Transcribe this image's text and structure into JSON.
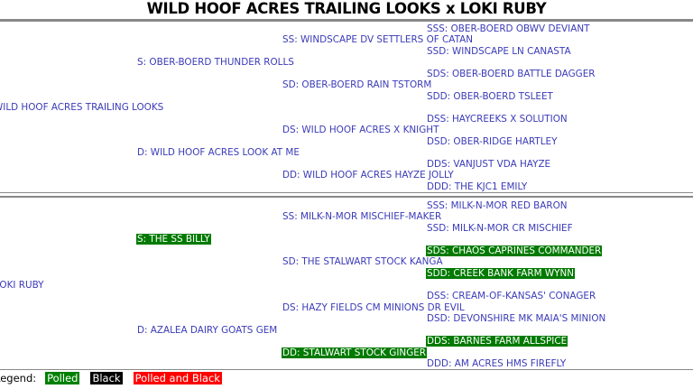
{
  "title": "WILD HOOF ACRES TRAILING LOOKS x LOKI RUBY",
  "colors": {
    "text": "#3a3ab8",
    "polled": "#008000",
    "black": "#000000",
    "polled_and_black": "#ff0000"
  },
  "sire_pedigree": {
    "sss": "SSS: OBER-BOERD OBWV DEVIANT",
    "ss": "SS: WINDSCAPE DV SETTLERS OF CATAN",
    "ssd": "SSD: WINDSCAPE LN CANASTA",
    "s": "S: OBER-BOERD THUNDER ROLLS",
    "sds": "SDS: OBER-BOERD BATTLE DAGGER",
    "sd": "SD: OBER-BOERD RAIN TSTORM",
    "sdd": "SDD: OBER-BOERD TSLEET",
    "animal": "WILD HOOF ACRES TRAILING LOOKS",
    "dss": "DSS: HAYCREEKS X SOLUTION",
    "ds": "DS: WILD HOOF ACRES X KNIGHT",
    "dsd": "DSD: OBER-RIDGE HARTLEY",
    "d": "D: WILD HOOF ACRES LOOK AT ME",
    "dds": "DDS: VANJUST VDA HAYZE",
    "dd": "DD: WILD HOOF ACRES HAYZE JOLLY",
    "ddd": "DDD: THE KJC1 EMILY"
  },
  "dam_pedigree": {
    "sss": "SSS: MILK-N-MOR RED BARON",
    "ss": "SS: MILK-N-MOR MISCHIEF-MAKER",
    "ssd": "SSD: MILK-N-MOR CR MISCHIEF",
    "s": "S: THE SS BILLY",
    "sds": "SDS: CHAOS CAPRINES COMMANDER",
    "sd": "SD: THE STALWART STOCK KANGA",
    "sdd": "SDD: CREEK BANK FARM WYNN",
    "animal": "LOKI RUBY",
    "dss": "DSS: CREAM-OF-KANSAS' CONAGER",
    "ds": "DS: HAZY FIELDS CM MINIONS DR EVIL",
    "dsd": "DSD: DEVONSHIRE MK MAIA'S MINION",
    "d": "D: AZALEA DAIRY GOATS GEM",
    "dds": "DDS: BARNES FARM ALLSPICE",
    "dd": "DD: STALWART STOCK GINGER",
    "ddd": "DDD: AM ACRES HMS FIREFLY"
  },
  "legend": {
    "label": "Legend:",
    "polled": "Polled",
    "black": "Black",
    "polled_and_black": "Polled and Black"
  }
}
